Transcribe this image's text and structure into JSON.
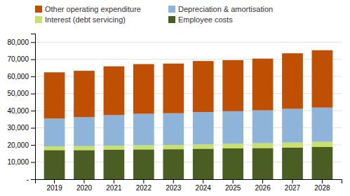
{
  "chart_data": {
    "type": "bar",
    "stacked": true,
    "categories": [
      "2019",
      "2020",
      "2021",
      "2022",
      "2023",
      "2024",
      "2025",
      "2026",
      "2027",
      "2028"
    ],
    "series": [
      {
        "name": "Employee costs",
        "color": "#4A5E23",
        "values": [
          17000,
          17000,
          17200,
          17400,
          17500,
          17800,
          18000,
          18200,
          18500,
          18800
        ]
      },
      {
        "name": "Interest (debt servicing)",
        "color": "#C9E06A",
        "values": [
          2200,
          2300,
          2400,
          2400,
          2500,
          2500,
          2700,
          2800,
          2900,
          3000
        ]
      },
      {
        "name": "Depreciation & amortisation",
        "color": "#8FB4D9",
        "values": [
          16200,
          16900,
          17800,
          18400,
          18500,
          18900,
          19000,
          19200,
          19700,
          20000
        ]
      },
      {
        "name": "Other operating expenditure",
        "color": "#BF4F02",
        "values": [
          27000,
          27100,
          28500,
          29000,
          29000,
          29800,
          29800,
          30200,
          32400,
          33500
        ]
      }
    ],
    "ylim": [
      0,
      85000
    ],
    "yticks": [
      {
        "value": 0,
        "label": "-"
      },
      {
        "value": 10000,
        "label": "10,000"
      },
      {
        "value": 20000,
        "label": "20,000"
      },
      {
        "value": 30000,
        "label": "30,000"
      },
      {
        "value": 40000,
        "label": "40,000"
      },
      {
        "value": 50000,
        "label": "50,000"
      },
      {
        "value": 60000,
        "label": "60,000"
      },
      {
        "value": 70000,
        "label": "70,000"
      },
      {
        "value": 80000,
        "label": "80,000"
      }
    ],
    "grid": true,
    "legend": "top"
  }
}
